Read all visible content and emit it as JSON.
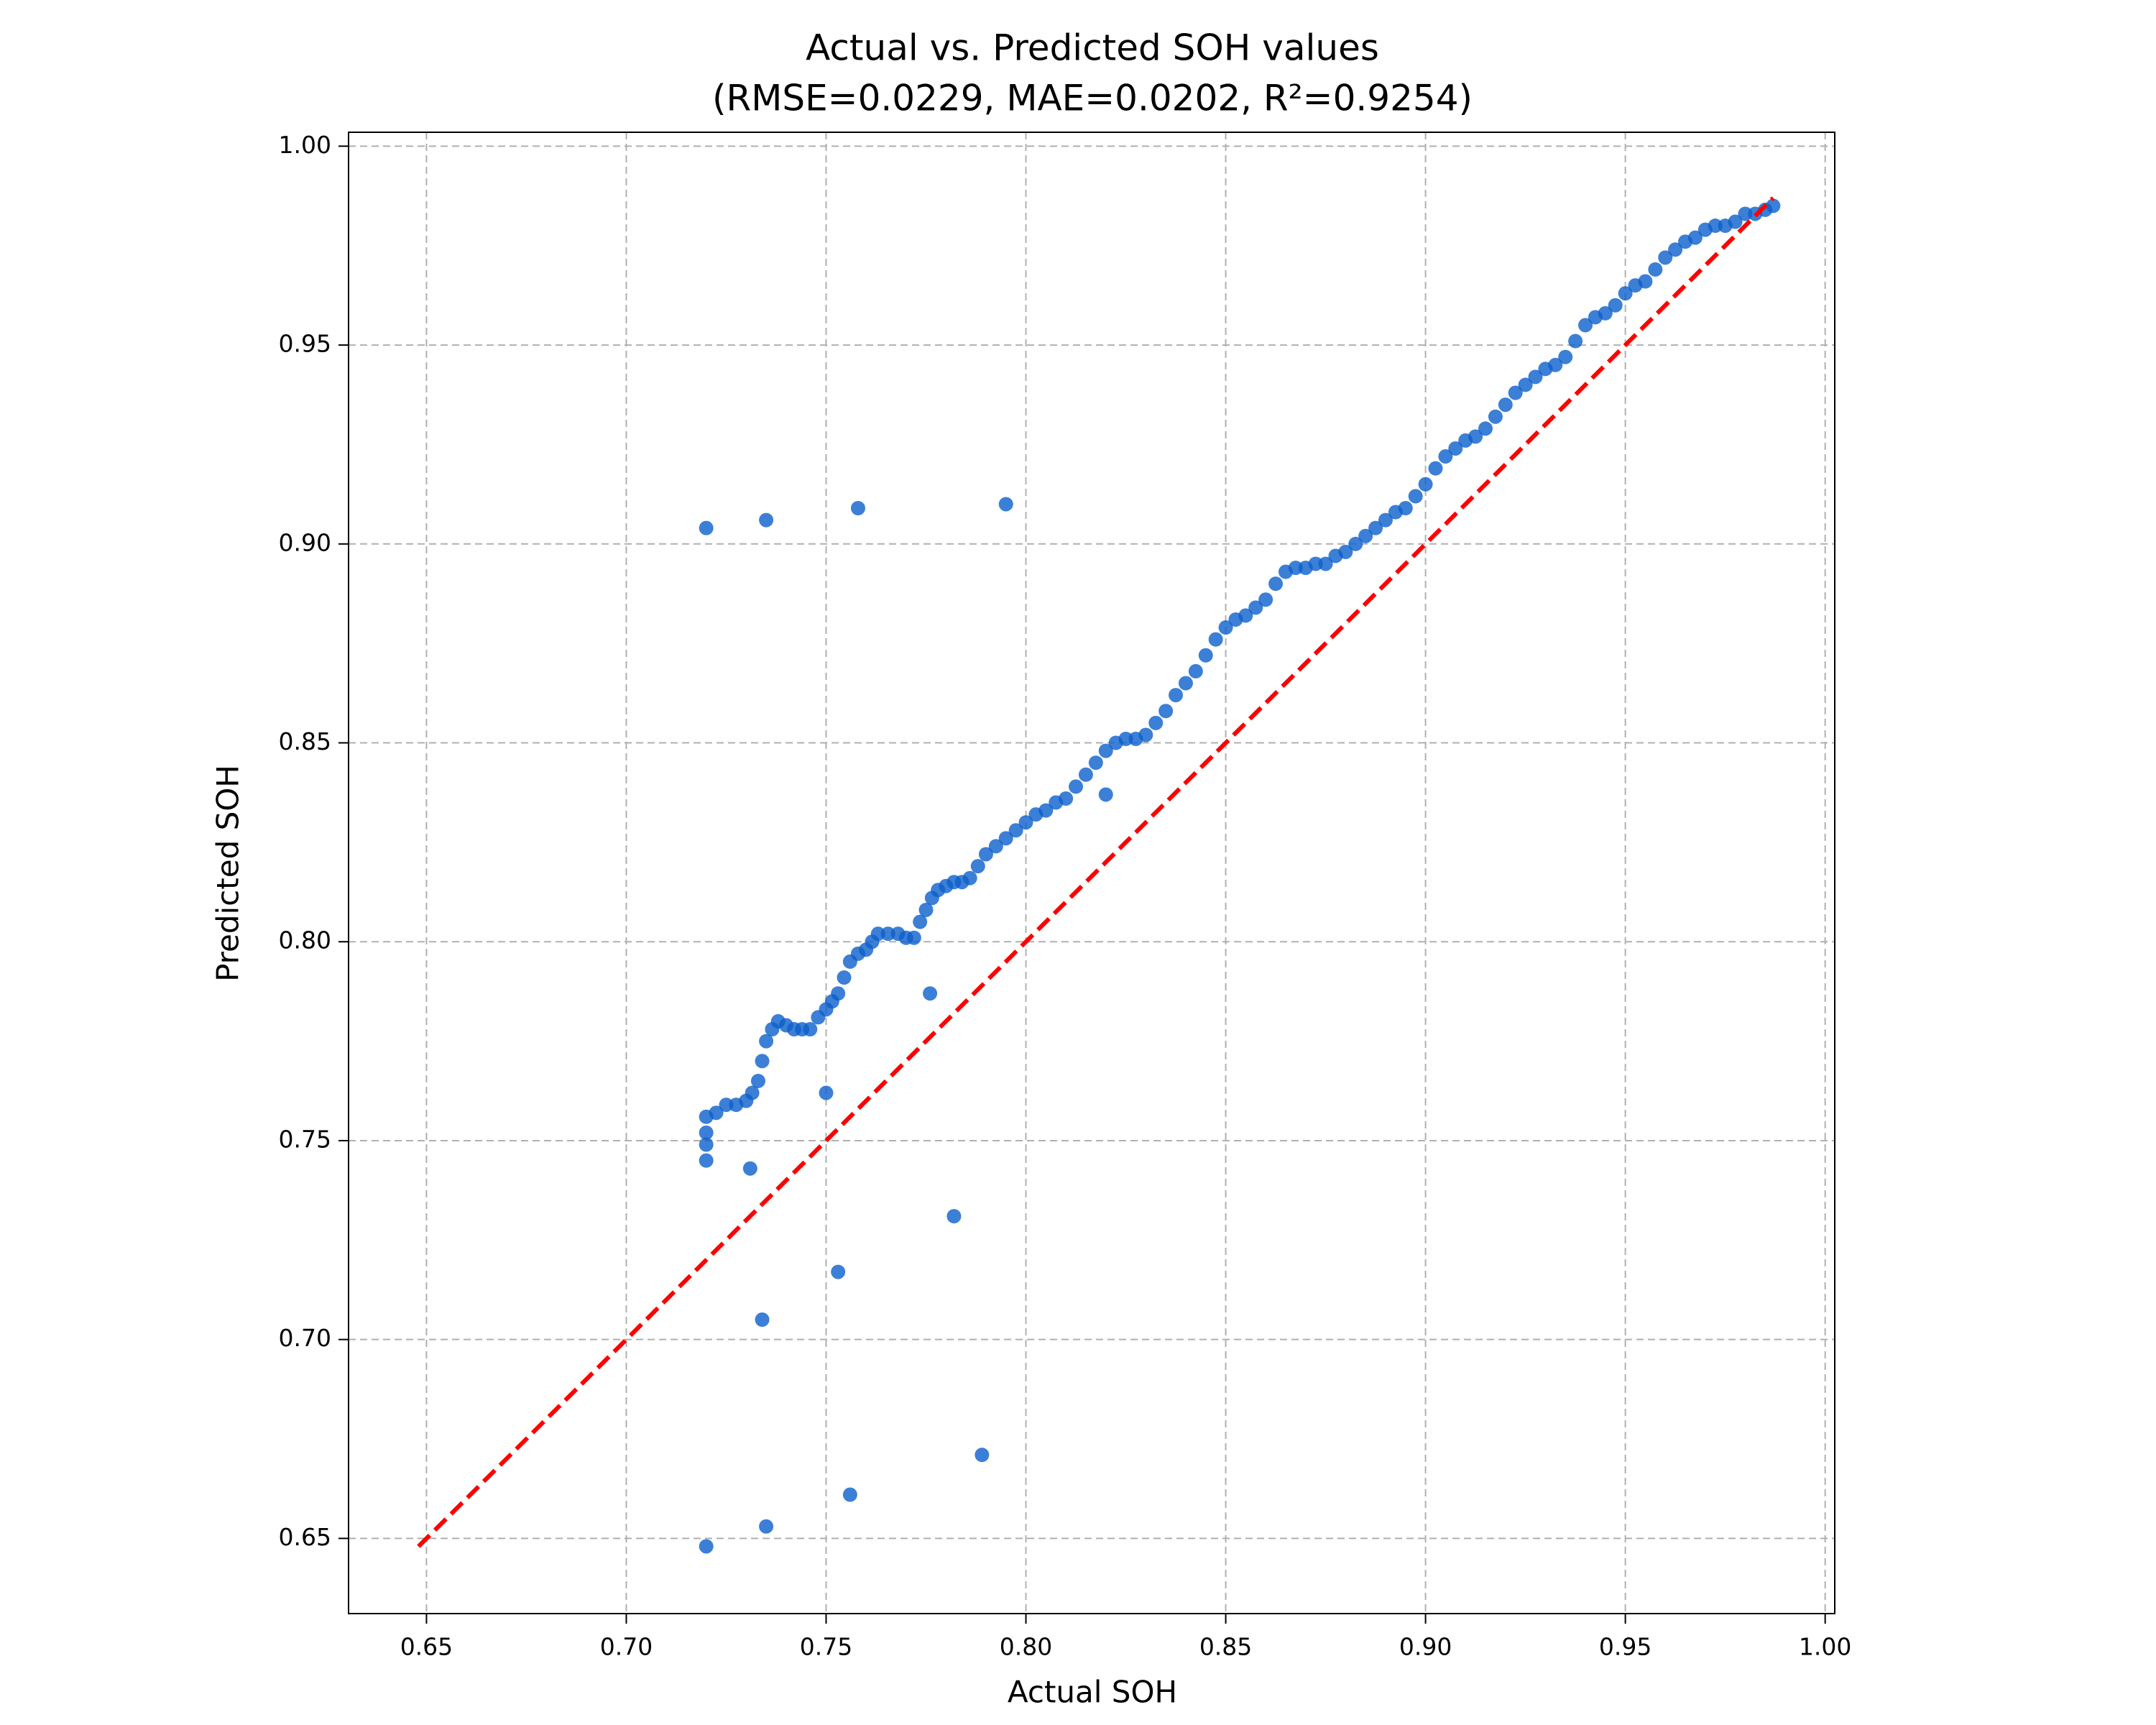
{
  "chart_data": {
    "type": "scatter",
    "title": "Actual vs. Predicted SOH values",
    "subtitle": "(RMSE=0.0229, MAE=0.0202,  R²=0.9254)",
    "x_label": "Actual SOH",
    "y_label": "Predicted SOH",
    "color": "#0b5fcc",
    "grid": true,
    "xlim": [
      0.6305,
      1.0024
    ],
    "ylim": [
      0.6311,
      1.0035
    ],
    "xticks": [
      0.65,
      {
        "value": 0.7,
        "label": "0.70"
      },
      0.75,
      {
        "value": 0.8,
        "label": "0.80"
      },
      0.85,
      {
        "value": 0.9,
        "label": "0.90"
      },
      0.95,
      {
        "value": 1.0,
        "label": "1.00"
      }
    ],
    "yticks": [
      0.65,
      {
        "value": 0.7,
        "label": "0.70"
      },
      0.75,
      {
        "value": 0.8,
        "label": "0.80"
      },
      0.85,
      {
        "value": 0.9,
        "label": "0.90"
      },
      0.95,
      {
        "value": 1.0,
        "label": "1.00"
      }
    ],
    "reference_line": {
      "color": "#ff0000",
      "x": [
        0.648,
        0.987
      ],
      "values": [
        0.648,
        0.987
      ]
    },
    "x": [
      0.72,
      0.72,
      0.72,
      0.72,
      0.7225,
      0.725,
      0.7275,
      0.73,
      0.7315,
      0.733,
      0.734,
      0.735,
      0.7365,
      0.738,
      0.74,
      0.742,
      0.744,
      0.746,
      0.748,
      0.75,
      0.7515,
      0.753,
      0.7545,
      0.756,
      0.758,
      0.76,
      0.7615,
      0.763,
      0.7655,
      0.768,
      0.77,
      0.772,
      0.7735,
      0.775,
      0.7765,
      0.778,
      0.78,
      0.782,
      0.784,
      0.786,
      0.788,
      0.79,
      0.7925,
      0.795,
      0.7975,
      0.8,
      0.8025,
      0.805,
      0.8075,
      0.81,
      0.8125,
      0.815,
      0.8175,
      0.82,
      0.8225,
      0.825,
      0.8275,
      0.83,
      0.8325,
      0.835,
      0.8375,
      0.84,
      0.8425,
      0.845,
      0.8475,
      0.85,
      0.8525,
      0.855,
      0.8575,
      0.86,
      0.8625,
      0.865,
      0.8675,
      0.87,
      0.8725,
      0.875,
      0.8775,
      0.88,
      0.8825,
      0.885,
      0.8875,
      0.89,
      0.8925,
      0.895,
      0.8975,
      0.9,
      0.9025,
      0.905,
      0.9075,
      0.91,
      0.9125,
      0.915,
      0.9175,
      0.92,
      0.9225,
      0.925,
      0.9275,
      0.93,
      0.9325,
      0.935,
      0.9375,
      0.94,
      0.9425,
      0.945,
      0.9475,
      0.95,
      0.9525,
      0.955,
      0.9575,
      0.96,
      0.9625,
      0.965,
      0.9675,
      0.97,
      0.9725,
      0.975,
      0.9775,
      0.98,
      0.9825,
      0.985,
      0.987,
      0.72,
      0.735,
      0.758,
      0.795,
      0.82,
      0.75,
      0.776,
      0.731,
      0.782,
      0.753,
      0.734,
      0.789,
      0.756,
      0.735,
      0.72
    ],
    "values": [
      0.745,
      0.749,
      0.752,
      0.756,
      0.757,
      0.759,
      0.759,
      0.76,
      0.762,
      0.765,
      0.77,
      0.775,
      0.778,
      0.78,
      0.779,
      0.778,
      0.778,
      0.778,
      0.781,
      0.783,
      0.785,
      0.787,
      0.791,
      0.795,
      0.797,
      0.798,
      0.8,
      0.802,
      0.802,
      0.802,
      0.801,
      0.801,
      0.805,
      0.808,
      0.811,
      0.813,
      0.814,
      0.815,
      0.815,
      0.816,
      0.819,
      0.822,
      0.824,
      0.826,
      0.828,
      0.83,
      0.832,
      0.833,
      0.835,
      0.836,
      0.839,
      0.842,
      0.845,
      0.848,
      0.85,
      0.851,
      0.851,
      0.852,
      0.855,
      0.858,
      0.862,
      0.865,
      0.868,
      0.872,
      0.876,
      0.879,
      0.881,
      0.882,
      0.884,
      0.886,
      0.89,
      0.893,
      0.894,
      0.894,
      0.895,
      0.895,
      0.897,
      0.898,
      0.9,
      0.902,
      0.904,
      0.906,
      0.908,
      0.909,
      0.912,
      0.915,
      0.919,
      0.922,
      0.924,
      0.926,
      0.927,
      0.929,
      0.932,
      0.935,
      0.938,
      0.94,
      0.942,
      0.944,
      0.945,
      0.947,
      0.951,
      0.955,
      0.957,
      0.958,
      0.96,
      0.963,
      0.965,
      0.966,
      0.969,
      0.972,
      0.974,
      0.976,
      0.977,
      0.979,
      0.98,
      0.98,
      0.981,
      0.983,
      0.983,
      0.984,
      0.985,
      0.904,
      0.906,
      0.909,
      0.91,
      0.837,
      0.762,
      0.787,
      0.743,
      0.731,
      0.717,
      0.705,
      0.671,
      0.661,
      0.653,
      0.648
    ]
  }
}
